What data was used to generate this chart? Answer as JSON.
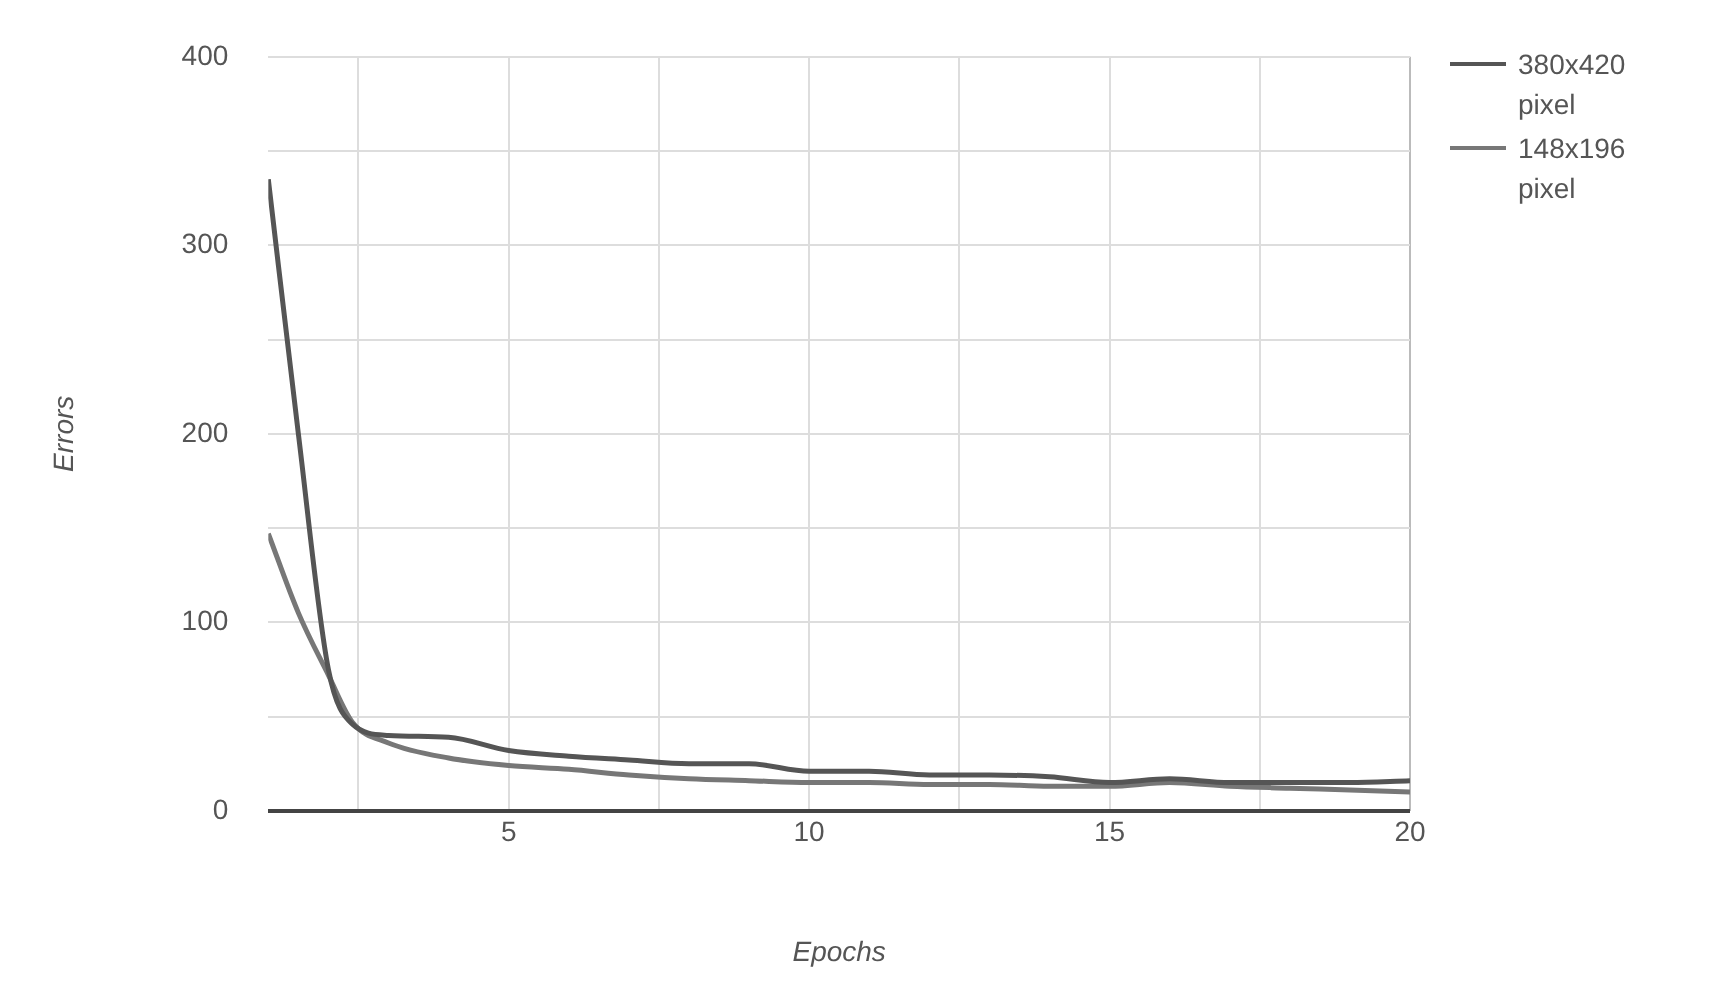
{
  "chart_data": {
    "type": "line",
    "xlabel": "Epochs",
    "ylabel": "Errors",
    "x": [
      1,
      1.5,
      2,
      2.4,
      3,
      4,
      5,
      6,
      7,
      8,
      9,
      10,
      11,
      12,
      13,
      14,
      15,
      16,
      17,
      18,
      19,
      20
    ],
    "series": [
      {
        "name": "380x420 pixel",
        "color": "#555555",
        "values": [
          335,
          200,
          75,
          46,
          40,
          39,
          32,
          29,
          27,
          25,
          25,
          21,
          21,
          19,
          19,
          18,
          15,
          17,
          15,
          15,
          15,
          16
        ]
      },
      {
        "name": "148x196 pixel",
        "color": "#777777",
        "values": [
          147,
          105,
          72,
          47,
          36,
          28,
          24,
          22,
          19,
          17,
          16,
          15,
          15,
          14,
          14,
          13,
          13,
          15,
          13,
          12,
          11,
          10
        ]
      }
    ],
    "xlim": [
      1,
      20
    ],
    "xticks": [
      {
        "value": 2.5,
        "label": null
      },
      5,
      {
        "value": 7.5,
        "label": null
      },
      10,
      {
        "value": 12.5,
        "label": null
      },
      15,
      {
        "value": 17.5,
        "label": null
      },
      20
    ],
    "ylim": [
      0,
      400
    ],
    "yticks": [
      0,
      {
        "value": 50,
        "label": null
      },
      100,
      {
        "value": 150,
        "label": null
      },
      200,
      {
        "value": 250,
        "label": null
      },
      300,
      {
        "value": 350,
        "label": null
      },
      400
    ],
    "grid": true,
    "legend": "top right",
    "marker": "none",
    "line_style": "solid"
  }
}
